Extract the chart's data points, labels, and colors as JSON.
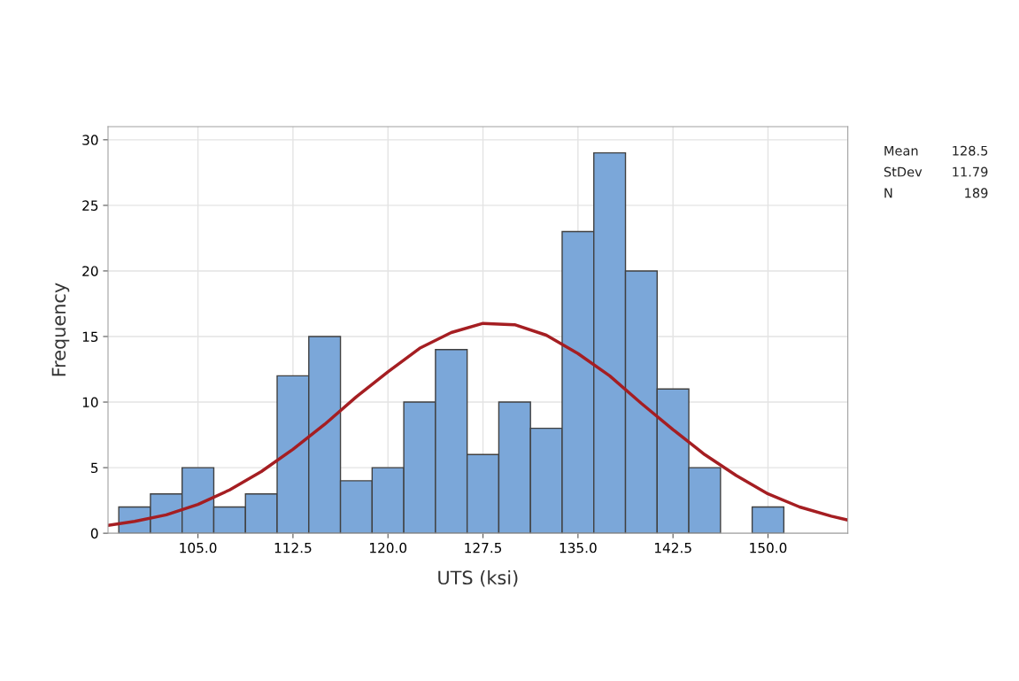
{
  "chart_data": {
    "type": "histogram",
    "xlabel": "UTS (ksi)",
    "ylabel": "Frequency",
    "bins": [
      98.75,
      101.25,
      103.75,
      106.25,
      108.75,
      111.25,
      113.75,
      116.25,
      118.75,
      121.25,
      123.75,
      126.25,
      128.75,
      131.25,
      133.75,
      136.25,
      138.75,
      141.25,
      143.75,
      146.25,
      148.75,
      151.25
    ],
    "values": [
      2,
      3,
      5,
      2,
      3,
      12,
      15,
      4,
      5,
      10,
      14,
      6,
      10,
      8,
      23,
      29,
      20,
      11,
      5,
      0,
      2
    ],
    "color": "#7ba7d9",
    "series": [
      {
        "type": "line",
        "color": "#a51e22",
        "x": [
          97.9,
          100,
          102.5,
          105,
          107.5,
          110,
          112.5,
          115,
          117.5,
          120,
          122.5,
          125,
          127.5,
          130,
          132.5,
          135,
          137.5,
          140,
          142.5,
          145,
          147.5,
          150,
          152.5,
          155,
          156.3
        ],
        "values": [
          0.6,
          0.9,
          1.4,
          2.2,
          3.3,
          4.7,
          6.4,
          8.3,
          10.4,
          12.3,
          14.1,
          15.3,
          16.0,
          15.9,
          15.1,
          13.7,
          12.0,
          9.9,
          7.9,
          6.0,
          4.4,
          3.0,
          2.0,
          1.3,
          1.0
        ]
      }
    ],
    "xlim": [
      97.9,
      156.3
    ],
    "ylim": [
      0,
      31
    ],
    "xticks": [
      {
        "value": 105,
        "label": "105.0"
      },
      {
        "value": 112.5,
        "label": "112.5"
      },
      {
        "value": 120,
        "label": "120.0"
      },
      {
        "value": 127.5,
        "label": "127.5"
      },
      {
        "value": 135,
        "label": "135.0"
      },
      {
        "value": 142.5,
        "label": "142.5"
      },
      {
        "value": 150,
        "label": "150.0"
      }
    ],
    "yticks": [
      0,
      5,
      10,
      15,
      20,
      25,
      30
    ],
    "grid": true,
    "legend": false,
    "annotations": [
      "Mean",
      "128.5",
      "StDev",
      "11.79",
      "N",
      "189"
    ]
  }
}
